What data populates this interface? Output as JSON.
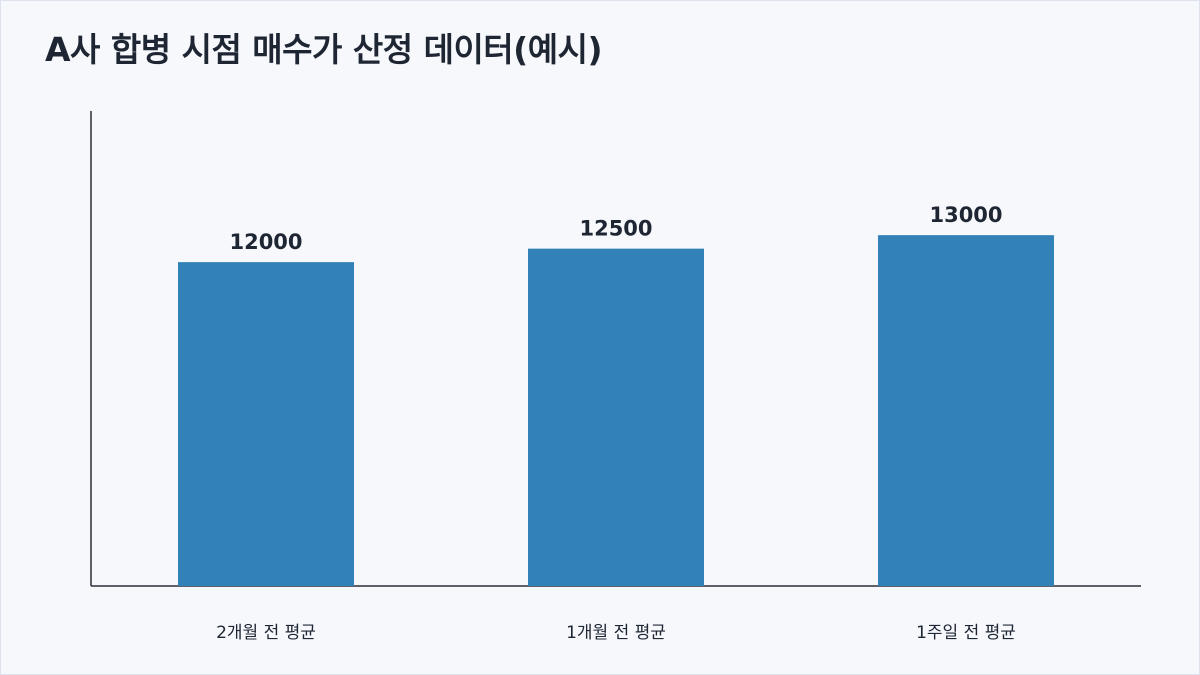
{
  "chart_data": {
    "type": "bar",
    "title": "A사 합병 시점 매수가 산정 데이터(예시)",
    "categories": [
      "2개월 전 평균",
      "1개월 전 평균",
      "1주일 전 평균"
    ],
    "values": [
      12000,
      12500,
      13000
    ],
    "xlabel": "",
    "ylabel": "",
    "ylim": [
      0,
      17600
    ],
    "grid": false,
    "legend": "none",
    "bar_color": "#3282b8",
    "axis_color": "#2b2f3a"
  }
}
